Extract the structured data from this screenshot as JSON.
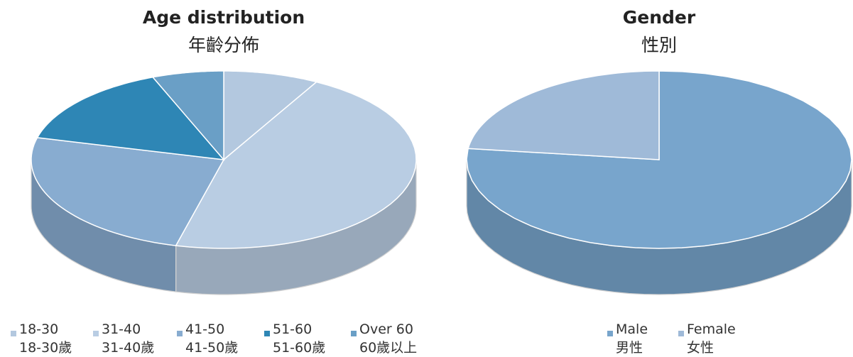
{
  "chart_data": [
    {
      "type": "pie3d",
      "title": "Age distribution",
      "subtitle": "年齡分佈",
      "categories": [
        "18-30",
        "31-40",
        "41-50",
        "51-60",
        "Over 60"
      ],
      "categories_zh": [
        "18-30歲",
        "31-40歲",
        "41-50歲",
        "51-60歲",
        "60歲以上"
      ],
      "values": [
        8,
        46,
        25,
        15,
        6
      ],
      "colors": [
        "#b3c8df",
        "#b9cde3",
        "#88acd0",
        "#2e86b5",
        "#6a9fc6"
      ]
    },
    {
      "type": "pie3d",
      "title": "Gender",
      "subtitle": "性別",
      "categories": [
        "Male",
        "Female"
      ],
      "categories_zh": [
        "男性",
        "女性"
      ],
      "values": [
        77,
        23
      ],
      "colors": [
        "#78a5cc",
        "#9fbad8"
      ]
    }
  ]
}
